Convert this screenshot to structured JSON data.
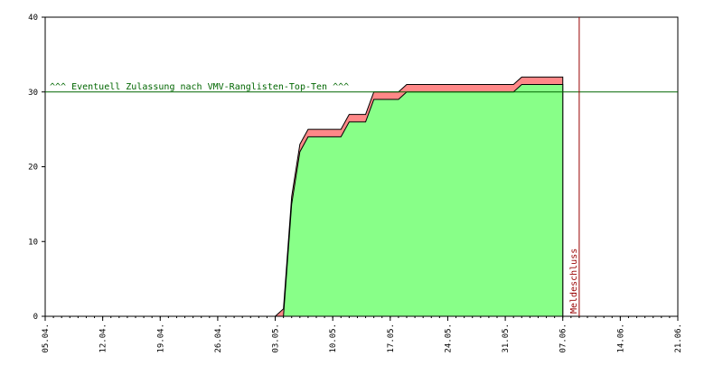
{
  "chart_data": {
    "type": "area",
    "title": "",
    "xlabel": "",
    "ylabel": "",
    "ylim": [
      0,
      40
    ],
    "yticks": [
      0,
      10,
      20,
      30,
      40
    ],
    "x_range": [
      "2024-04-05",
      "2024-06-21"
    ],
    "x_tick_labels": [
      {
        "date": "2024-04-05",
        "label": "05.04."
      },
      {
        "date": "2024-04-12",
        "label": "12.04."
      },
      {
        "date": "2024-04-19",
        "label": "19.04."
      },
      {
        "date": "2024-04-26",
        "label": "26.04."
      },
      {
        "date": "2024-05-03",
        "label": "03.05."
      },
      {
        "date": "2024-05-10",
        "label": "10.05."
      },
      {
        "date": "2024-05-17",
        "label": "17.05."
      },
      {
        "date": "2024-05-24",
        "label": "24.05."
      },
      {
        "date": "2024-05-31",
        "label": "31.05."
      },
      {
        "date": "2024-06-07",
        "label": "07.06."
      },
      {
        "date": "2024-06-14",
        "label": "14.06."
      },
      {
        "date": "2024-06-21",
        "label": "21.06."
      }
    ],
    "grid": false,
    "series": [
      {
        "color": "#ff8888",
        "points": [
          {
            "x": "2024-05-03",
            "y": 0
          },
          {
            "x": "2024-05-04",
            "y": 1
          },
          {
            "x": "2024-05-05",
            "y": 16
          },
          {
            "x": "2024-05-06",
            "y": 23
          },
          {
            "x": "2024-05-07",
            "y": 25
          },
          {
            "x": "2024-05-11",
            "y": 25
          },
          {
            "x": "2024-05-12",
            "y": 27
          },
          {
            "x": "2024-05-14",
            "y": 27
          },
          {
            "x": "2024-05-15",
            "y": 30
          },
          {
            "x": "2024-05-18",
            "y": 30
          },
          {
            "x": "2024-05-19",
            "y": 31
          },
          {
            "x": "2024-06-01",
            "y": 31
          },
          {
            "x": "2024-06-02",
            "y": 32
          },
          {
            "x": "2024-06-07",
            "y": 32
          }
        ]
      },
      {
        "color": "#88ff88",
        "points": [
          {
            "x": "2024-05-03",
            "y": 0
          },
          {
            "x": "2024-05-04",
            "y": 0
          },
          {
            "x": "2024-05-05",
            "y": 15
          },
          {
            "x": "2024-05-06",
            "y": 22
          },
          {
            "x": "2024-05-07",
            "y": 24
          },
          {
            "x": "2024-05-11",
            "y": 24
          },
          {
            "x": "2024-05-12",
            "y": 26
          },
          {
            "x": "2024-05-14",
            "y": 26
          },
          {
            "x": "2024-05-15",
            "y": 29
          },
          {
            "x": "2024-05-18",
            "y": 29
          },
          {
            "x": "2024-05-19",
            "y": 30
          },
          {
            "x": "2024-06-01",
            "y": 30
          },
          {
            "x": "2024-06-02",
            "y": 31
          },
          {
            "x": "2024-06-07",
            "y": 31
          }
        ]
      }
    ],
    "annotations": [
      {
        "kind": "hline",
        "y": 30,
        "text": "^^^ Eventuell Zulassung nach VMV-Ranglisten-Top-Ten ^^^",
        "color": "#006600"
      },
      {
        "kind": "vline",
        "x": "2024-06-09",
        "text": "Meldeschluss",
        "color": "#990000"
      }
    ]
  }
}
